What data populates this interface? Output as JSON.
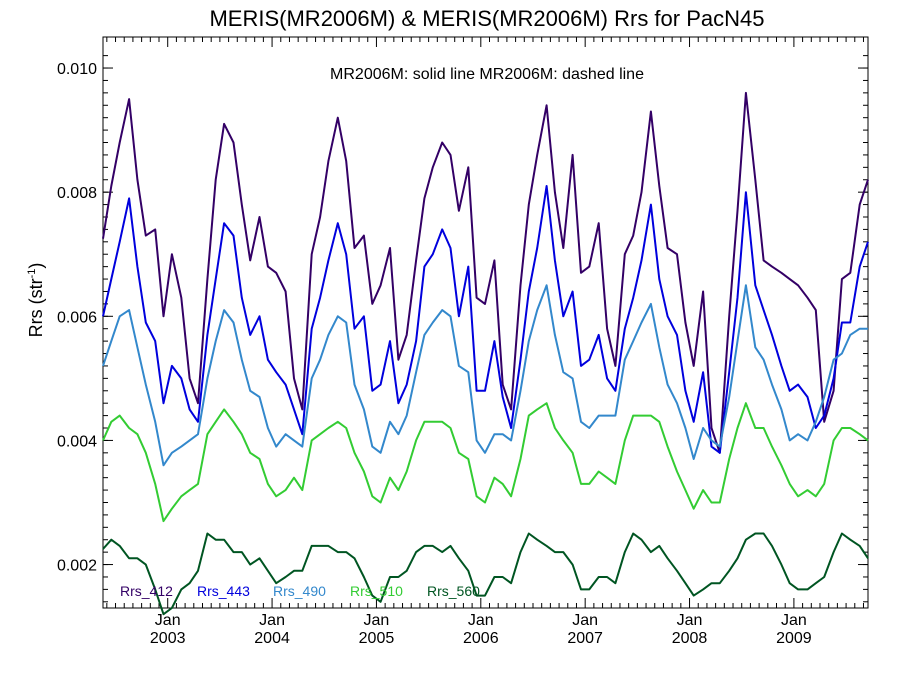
{
  "chart_data": {
    "type": "line",
    "title": "MERIS(MR2006M) & MERIS(MR2006M)  Rrs for PacN45",
    "ylabel": "Rrs (str",
    "ylabel_sup": "-1",
    "ylabel_close": ")",
    "annotation": "MR2006M: solid line   MR2006M: dashed line",
    "ylim": [
      0.0013,
      0.0105
    ],
    "y_ticks": [
      0.002,
      0.004,
      0.006,
      0.008,
      0.01
    ],
    "y_tick_labels": [
      "0.002",
      "0.004",
      "0.006",
      "0.008",
      "0.010"
    ],
    "xlim": [
      2002.38,
      2009.71
    ],
    "x_ticks": [
      2003.0,
      2004.0,
      2005.0,
      2006.0,
      2007.0,
      2008.0,
      2009.0
    ],
    "x_tick_labels_top": [
      "Jan",
      "Jan",
      "Jan",
      "Jan",
      "Jan",
      "Jan",
      "Jan"
    ],
    "x_tick_labels_bottom": [
      "2003",
      "2004",
      "2005",
      "2006",
      "2007",
      "2008",
      "2009"
    ],
    "x": [
      2002.38,
      2002.46,
      2002.54,
      2002.63,
      2002.71,
      2002.79,
      2002.88,
      2002.96,
      2003.04,
      2003.13,
      2003.21,
      2003.29,
      2003.38,
      2003.46,
      2003.54,
      2003.63,
      2003.71,
      2003.79,
      2003.88,
      2003.96,
      2004.04,
      2004.13,
      2004.21,
      2004.29,
      2004.38,
      2004.46,
      2004.54,
      2004.63,
      2004.71,
      2004.79,
      2004.88,
      2004.96,
      2005.04,
      2005.13,
      2005.21,
      2005.29,
      2005.38,
      2005.46,
      2005.54,
      2005.63,
      2005.71,
      2005.79,
      2005.88,
      2005.96,
      2006.04,
      2006.13,
      2006.21,
      2006.29,
      2006.38,
      2006.46,
      2006.54,
      2006.63,
      2006.71,
      2006.79,
      2006.88,
      2006.96,
      2007.04,
      2007.13,
      2007.21,
      2007.29,
      2007.38,
      2007.46,
      2007.54,
      2007.63,
      2007.71,
      2007.79,
      2007.88,
      2007.96,
      2008.04,
      2008.13,
      2008.21,
      2008.29,
      2008.38,
      2008.46,
      2008.54,
      2008.63,
      2008.71,
      2008.79,
      2008.88,
      2008.96,
      2009.04,
      2009.13,
      2009.21,
      2009.29,
      2009.38,
      2009.46,
      2009.54,
      2009.63,
      2009.71
    ],
    "series": [
      {
        "name": "Rrs_412",
        "color": "#330066",
        "values": [
          0.00725,
          0.0081,
          0.0088,
          0.0095,
          0.0082,
          0.0073,
          0.0074,
          0.006,
          0.007,
          0.0063,
          0.005,
          0.0046,
          0.0066,
          0.0082,
          0.0091,
          0.0088,
          0.0078,
          0.0069,
          0.0076,
          0.0068,
          0.0067,
          0.0064,
          0.005,
          0.0045,
          0.007,
          0.0076,
          0.0085,
          0.0092,
          0.0085,
          0.0071,
          0.0073,
          0.0062,
          0.0065,
          0.0071,
          0.0053,
          0.0057,
          0.0069,
          0.0079,
          0.0084,
          0.0088,
          0.0086,
          0.0077,
          0.0084,
          0.0063,
          0.0062,
          0.0069,
          0.0049,
          0.0045,
          0.0065,
          0.0078,
          0.0086,
          0.0094,
          0.008,
          0.0071,
          0.0086,
          0.0067,
          0.0068,
          0.0075,
          0.0058,
          0.0052,
          0.007,
          0.0073,
          0.008,
          0.0093,
          0.0081,
          0.0071,
          0.007,
          0.0059,
          0.0052,
          0.0064,
          0.0042,
          0.0038,
          0.006,
          0.0077,
          0.0096,
          0.0082,
          0.0069,
          0.0068,
          0.0067,
          0.0066,
          0.0065,
          0.0063,
          0.0061,
          0.0043,
          0.0048,
          0.0066,
          0.0067,
          0.0078,
          0.0082
        ]
      },
      {
        "name": "Rrs_443",
        "color": "#0000dd",
        "values": [
          0.006,
          0.0066,
          0.0072,
          0.0079,
          0.0068,
          0.0059,
          0.0056,
          0.0046,
          0.0052,
          0.005,
          0.0045,
          0.0043,
          0.0057,
          0.0066,
          0.0075,
          0.0073,
          0.0063,
          0.0057,
          0.006,
          0.0053,
          0.0051,
          0.0049,
          0.0045,
          0.0041,
          0.0058,
          0.0063,
          0.0069,
          0.0075,
          0.007,
          0.0058,
          0.006,
          0.0048,
          0.0049,
          0.0056,
          0.0046,
          0.0049,
          0.0056,
          0.0068,
          0.007,
          0.0074,
          0.0071,
          0.006,
          0.0068,
          0.0048,
          0.0048,
          0.0056,
          0.0047,
          0.0042,
          0.0053,
          0.0064,
          0.0071,
          0.0081,
          0.0069,
          0.006,
          0.0064,
          0.0052,
          0.0053,
          0.0057,
          0.005,
          0.0048,
          0.0058,
          0.0063,
          0.0069,
          0.0078,
          0.0066,
          0.006,
          0.0057,
          0.0048,
          0.0043,
          0.0051,
          0.0039,
          0.0038,
          0.0051,
          0.0063,
          0.008,
          0.0065,
          0.0061,
          0.0057,
          0.0052,
          0.0048,
          0.0049,
          0.0047,
          0.0042,
          0.0044,
          0.005,
          0.0059,
          0.0059,
          0.0068,
          0.0072
        ]
      },
      {
        "name": "Rrs_490",
        "color": "#3388cc",
        "values": [
          0.0052,
          0.0056,
          0.006,
          0.0061,
          0.0055,
          0.0049,
          0.0043,
          0.0036,
          0.0038,
          0.0039,
          0.004,
          0.0041,
          0.005,
          0.0056,
          0.0061,
          0.0059,
          0.0053,
          0.0048,
          0.0047,
          0.0042,
          0.0039,
          0.0041,
          0.004,
          0.0039,
          0.005,
          0.0053,
          0.0057,
          0.006,
          0.0059,
          0.0049,
          0.0045,
          0.0039,
          0.0038,
          0.0043,
          0.0041,
          0.0044,
          0.0051,
          0.0057,
          0.0059,
          0.0061,
          0.006,
          0.0052,
          0.0051,
          0.004,
          0.0038,
          0.0041,
          0.0041,
          0.004,
          0.0048,
          0.0056,
          0.0061,
          0.0065,
          0.0057,
          0.0051,
          0.005,
          0.0043,
          0.0042,
          0.0044,
          0.0044,
          0.0044,
          0.0053,
          0.0056,
          0.0059,
          0.0062,
          0.0055,
          0.0049,
          0.0046,
          0.0042,
          0.0037,
          0.0042,
          0.004,
          0.0039,
          0.0047,
          0.0056,
          0.0065,
          0.0055,
          0.0053,
          0.0049,
          0.0045,
          0.004,
          0.0041,
          0.004,
          0.0043,
          0.0047,
          0.0053,
          0.0054,
          0.0057,
          0.0058,
          0.0058
        ]
      },
      {
        "name": "Rrs_510",
        "color": "#33cc33",
        "values": [
          0.004,
          0.0043,
          0.0044,
          0.0042,
          0.0041,
          0.0038,
          0.0033,
          0.0027,
          0.0029,
          0.0031,
          0.0032,
          0.0033,
          0.0041,
          0.0043,
          0.0045,
          0.0043,
          0.0041,
          0.0038,
          0.0037,
          0.0033,
          0.0031,
          0.0032,
          0.0034,
          0.0032,
          0.004,
          0.0041,
          0.0042,
          0.0043,
          0.0042,
          0.0038,
          0.0035,
          0.0031,
          0.003,
          0.0034,
          0.0032,
          0.0035,
          0.004,
          0.0043,
          0.0043,
          0.0043,
          0.0042,
          0.0038,
          0.0037,
          0.0031,
          0.003,
          0.0034,
          0.0033,
          0.0031,
          0.0037,
          0.0044,
          0.0045,
          0.0046,
          0.0042,
          0.004,
          0.0038,
          0.0033,
          0.0033,
          0.0035,
          0.0034,
          0.0033,
          0.004,
          0.0044,
          0.0044,
          0.0044,
          0.0043,
          0.0039,
          0.0035,
          0.0032,
          0.0029,
          0.0032,
          0.003,
          0.003,
          0.0037,
          0.0042,
          0.0046,
          0.0042,
          0.0042,
          0.0039,
          0.0036,
          0.0033,
          0.0031,
          0.0032,
          0.0031,
          0.0033,
          0.004,
          0.0042,
          0.0042,
          0.0041,
          0.004
        ]
      },
      {
        "name": "Rrs_560",
        "color": "#005522",
        "values": [
          0.00225,
          0.0024,
          0.0023,
          0.0021,
          0.0021,
          0.002,
          0.0016,
          0.0012,
          0.0013,
          0.0016,
          0.0017,
          0.0019,
          0.0025,
          0.0024,
          0.0024,
          0.0022,
          0.0022,
          0.002,
          0.0021,
          0.0019,
          0.0017,
          0.0018,
          0.0019,
          0.0019,
          0.0023,
          0.0023,
          0.0023,
          0.0022,
          0.0022,
          0.0021,
          0.0018,
          0.0015,
          0.0014,
          0.0018,
          0.0018,
          0.0019,
          0.0022,
          0.0023,
          0.0023,
          0.0022,
          0.0023,
          0.0021,
          0.0019,
          0.0015,
          0.0015,
          0.0018,
          0.0018,
          0.0017,
          0.0022,
          0.0025,
          0.0024,
          0.0023,
          0.0022,
          0.0022,
          0.002,
          0.0016,
          0.0016,
          0.0018,
          0.0018,
          0.0017,
          0.0022,
          0.0025,
          0.0024,
          0.0022,
          0.0023,
          0.0021,
          0.0019,
          0.0017,
          0.0015,
          0.0016,
          0.0017,
          0.0017,
          0.0019,
          0.0021,
          0.0024,
          0.0025,
          0.0025,
          0.0023,
          0.002,
          0.0017,
          0.0016,
          0.0016,
          0.0017,
          0.0018,
          0.0022,
          0.0025,
          0.0024,
          0.0023,
          0.0021
        ]
      }
    ]
  }
}
